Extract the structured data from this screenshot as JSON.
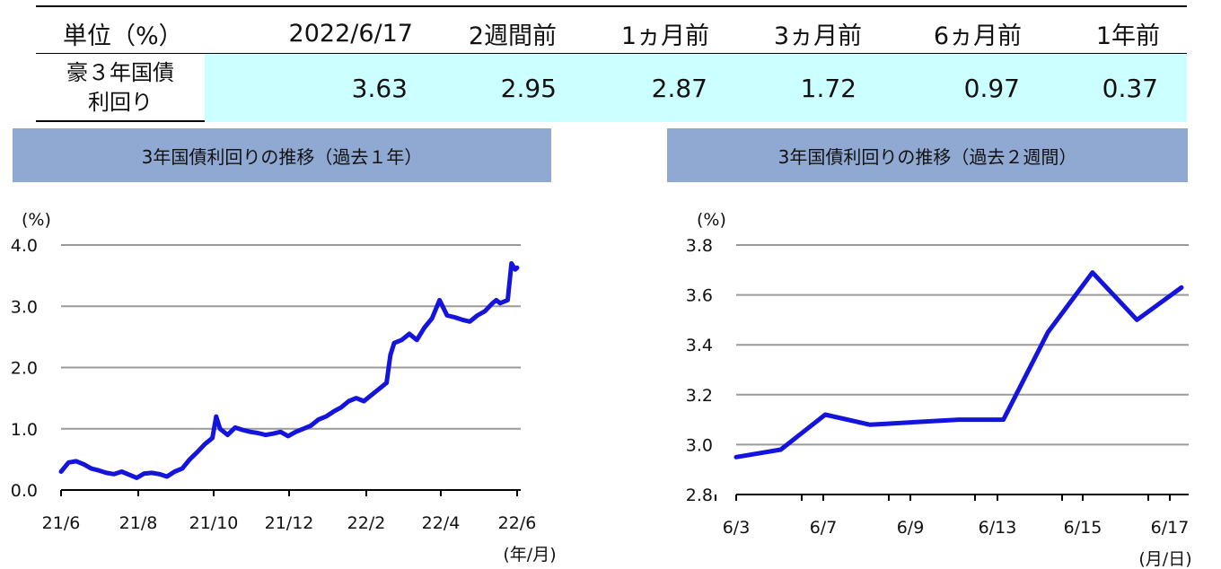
{
  "table": {
    "header_unit": "単位（%）",
    "columns": [
      "2022/6/17",
      "2週間前",
      "1ヵ月前",
      "3ヵ月前",
      "6ヵ月前",
      "1年前"
    ],
    "row_label_line1": "豪３年国債",
    "row_label_line2": "利回り",
    "values": [
      "3.63",
      "2.95",
      "2.87",
      "1.72",
      "0.97",
      "0.37"
    ],
    "value_background": "#ccffff"
  },
  "banners": {
    "left": "3年国債利回りの推移（過去１年）",
    "right": "3年国債利回りの推移（過去２週間）",
    "color": "#8fa9d2"
  },
  "chart_data": [
    {
      "type": "line",
      "title": "3年国債利回りの推移（過去１年）",
      "ylabel": "(%)",
      "xlabel": "(年/月)",
      "ylim": [
        0,
        4
      ],
      "yticks": [
        "0.0",
        "1.0",
        "2.0",
        "3.0",
        "4.0"
      ],
      "xticks": [
        "21/6",
        "21/8",
        "21/10",
        "21/12",
        "22/2",
        "22/4",
        "22/6"
      ],
      "grid": true,
      "color": "#1414dc",
      "series": [
        {
          "x": [
            0,
            0.2,
            0.4,
            0.6,
            0.8,
            1.0,
            1.2,
            1.4,
            1.6,
            1.8,
            2.0,
            2.2,
            2.4,
            2.6,
            2.8,
            3.0,
            3.2,
            3.4,
            3.6,
            3.8,
            4.0,
            4.1,
            4.2,
            4.3,
            4.4,
            4.6,
            4.8,
            5.0,
            5.2,
            5.4,
            5.6,
            5.8,
            6.0,
            6.2,
            6.4,
            6.6,
            6.8,
            7.0,
            7.2,
            7.4,
            7.6,
            7.8,
            8.0,
            8.2,
            8.4,
            8.6,
            8.7,
            8.8,
            9.0,
            9.2,
            9.4,
            9.6,
            9.8,
            10.0,
            10.2,
            10.4,
            10.6,
            10.8,
            11.0,
            11.2,
            11.4,
            11.5,
            11.6,
            11.8,
            11.9,
            12.0,
            12.05
          ],
          "values": [
            0.3,
            0.45,
            0.47,
            0.42,
            0.35,
            0.32,
            0.28,
            0.26,
            0.3,
            0.25,
            0.2,
            0.27,
            0.28,
            0.26,
            0.22,
            0.3,
            0.35,
            0.5,
            0.62,
            0.75,
            0.85,
            1.2,
            1.0,
            0.95,
            0.9,
            1.02,
            0.98,
            0.95,
            0.93,
            0.9,
            0.92,
            0.95,
            0.88,
            0.95,
            1.0,
            1.05,
            1.15,
            1.2,
            1.28,
            1.35,
            1.45,
            1.5,
            1.45,
            1.55,
            1.65,
            1.75,
            2.2,
            2.4,
            2.45,
            2.55,
            2.45,
            2.65,
            2.8,
            3.1,
            2.85,
            2.82,
            2.78,
            2.75,
            2.85,
            2.92,
            3.05,
            3.1,
            3.05,
            3.1,
            3.7,
            3.6,
            3.63
          ]
        }
      ]
    },
    {
      "type": "line",
      "title": "3年国債利回りの推移（過去２週間）",
      "ylabel": "(%)",
      "xlabel": "(月/日)",
      "ylim": [
        2.8,
        3.8
      ],
      "yticks": [
        "2.8",
        "3.0",
        "3.2",
        "3.4",
        "3.6",
        "3.8"
      ],
      "xticks": [
        "6/3",
        "6/7",
        "6/9",
        "6/13",
        "6/15",
        "6/17"
      ],
      "grid": true,
      "color": "#1414dc",
      "series": [
        {
          "x": [
            0,
            1,
            2,
            3,
            4,
            5,
            6,
            7,
            8,
            9,
            10
          ],
          "values": [
            2.95,
            2.98,
            3.12,
            3.08,
            3.09,
            3.1,
            3.1,
            3.45,
            3.69,
            3.5,
            3.63
          ]
        }
      ]
    }
  ]
}
